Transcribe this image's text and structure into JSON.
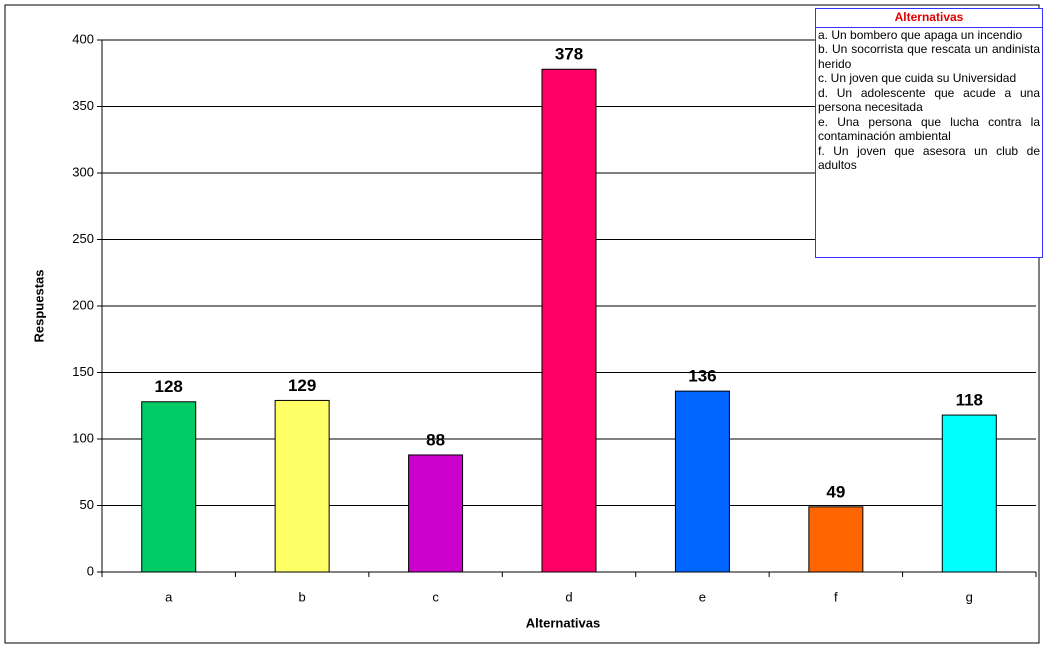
{
  "chart_data": {
    "type": "bar",
    "categories": [
      "a",
      "b",
      "c",
      "d",
      "e",
      "f",
      "g"
    ],
    "values": [
      128,
      129,
      88,
      378,
      136,
      49,
      118
    ],
    "colors": [
      "#00cc66",
      "#ffff66",
      "#cc00cc",
      "#ff0066",
      "#0066ff",
      "#ff6600",
      "#00ffff"
    ],
    "ylim": [
      0,
      400
    ],
    "yticks": [
      0,
      50,
      100,
      150,
      200,
      250,
      300,
      350,
      400
    ],
    "grid": true,
    "x_label": "Alternativas",
    "y_label": "Respuestas",
    "legend_box": {
      "title": "Alternativas",
      "items": [
        "a. Un bombero que apaga un incendio",
        "b. Un socorrista que rescata un andinista herido",
        "c. Un joven que cuida su Universidad",
        "d. Un adolescente que acude a una persona necesitada",
        "e. Una persona que lucha contra la contaminación ambiental",
        "f. Un joven que asesora un club de adultos"
      ]
    }
  }
}
